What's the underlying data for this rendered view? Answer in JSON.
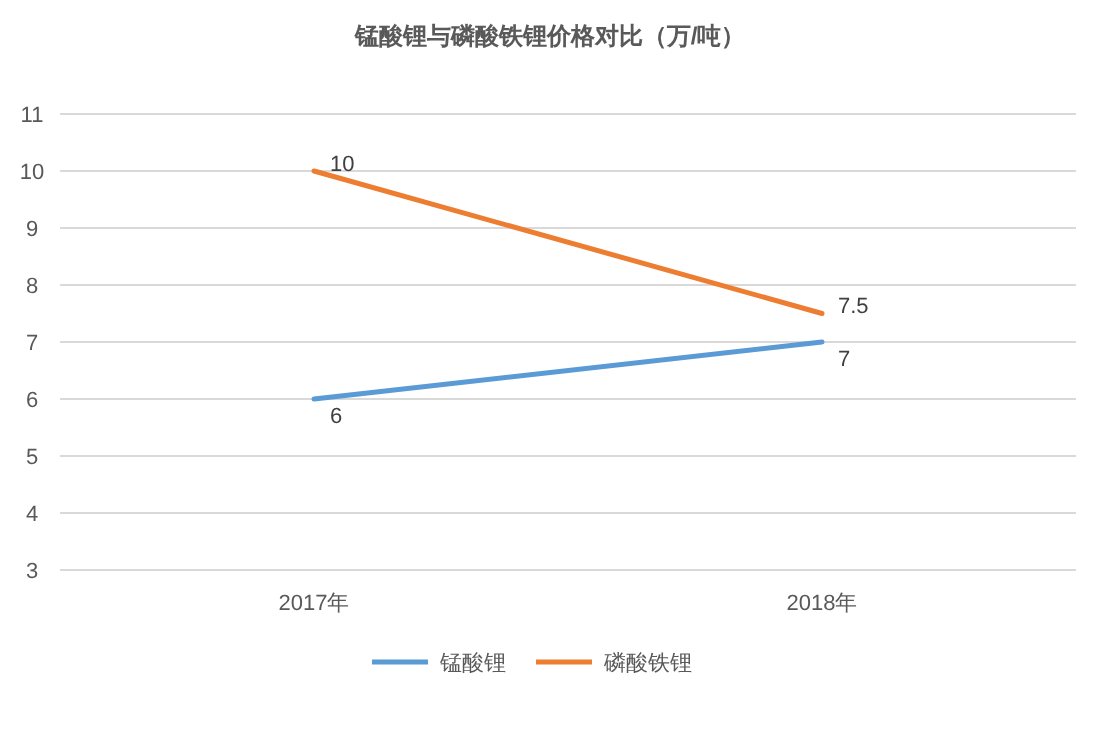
{
  "chart_data": {
    "type": "line",
    "title": "锰酸锂与磷酸铁锂价格对比（万/吨）",
    "categories": [
      "2017年",
      "2018年"
    ],
    "series": [
      {
        "name": "锰酸锂",
        "color": "#5b9bd5",
        "values": [
          6,
          7
        ]
      },
      {
        "name": "磷酸铁锂",
        "color": "#ed7d31",
        "values": [
          10,
          7.5
        ]
      }
    ],
    "ylim": [
      3,
      11
    ],
    "yticks": [
      3,
      4,
      5,
      6,
      7,
      8,
      9,
      10,
      11
    ],
    "grid": "y",
    "legend": "bottom",
    "data_labels": true,
    "marker": "none",
    "line_style": "solid"
  }
}
